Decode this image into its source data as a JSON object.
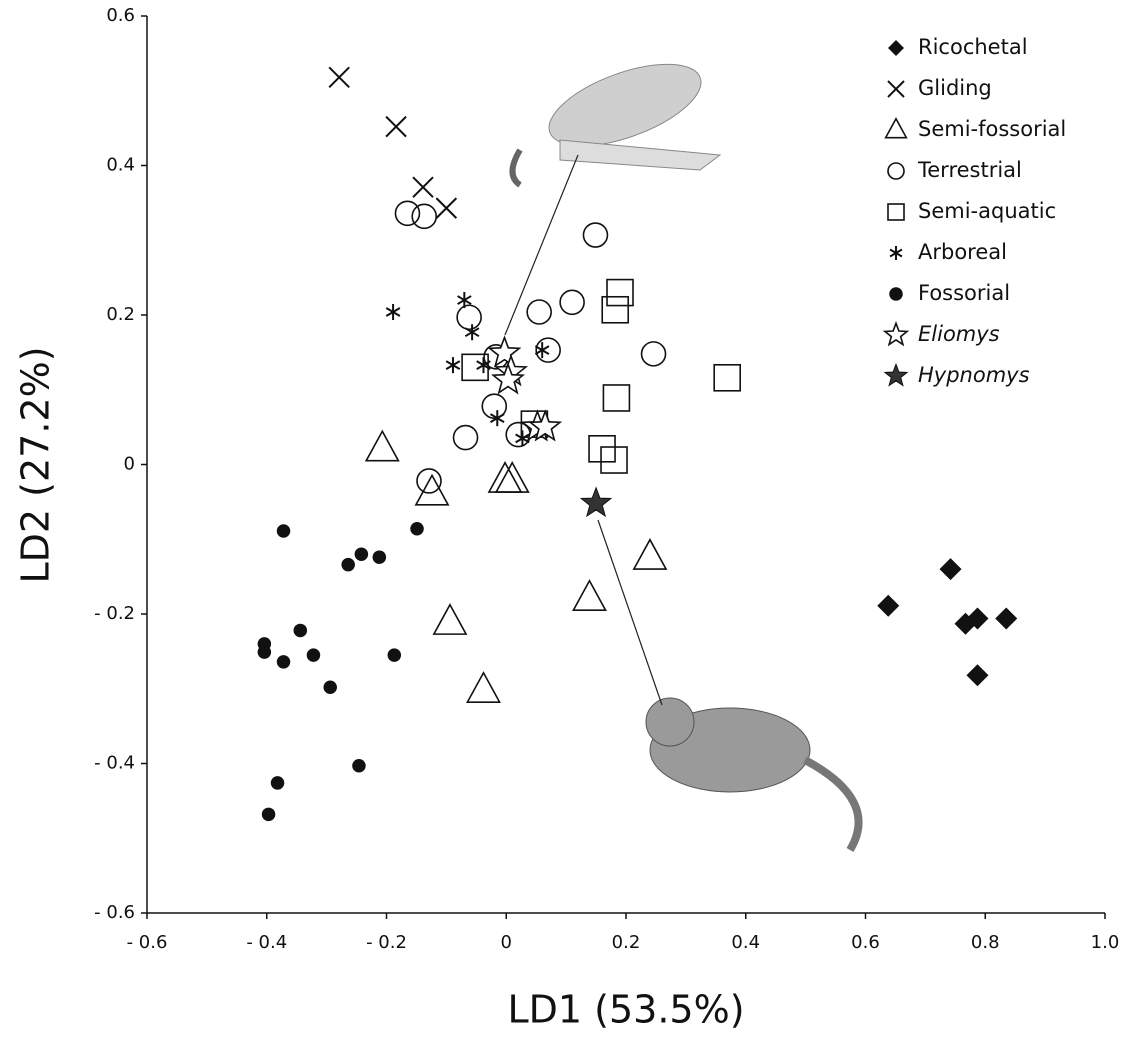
{
  "chart_data": {
    "type": "scatter",
    "xlabel": "LD1 (53.5%)",
    "ylabel": "LD2 (27.2%)",
    "xlim": [
      -0.6,
      1.0
    ],
    "ylim": [
      -0.6,
      0.6
    ],
    "xticks": [
      {
        "value": -0.6,
        "label": "- 0.6"
      },
      {
        "value": -0.4,
        "label": "- 0.4"
      },
      {
        "value": -0.2,
        "label": "- 0.2"
      },
      0,
      0.2,
      0.4,
      0.6,
      0.8,
      {
        "value": 1.0,
        "label": "1.0"
      }
    ],
    "yticks": [
      {
        "value": -0.6,
        "label": "- 0.6"
      },
      {
        "value": -0.4,
        "label": "- 0.4"
      },
      {
        "value": -0.2,
        "label": "- 0.2"
      },
      0,
      0.2,
      0.4,
      0.6
    ],
    "legend": "upper right",
    "series": [
      {
        "name": "Ricochetal",
        "marker": "diamond",
        "color": "#111111",
        "x": [
          0.638,
          0.742,
          0.767,
          0.787,
          0.835,
          0.787
        ],
        "y": [
          -0.189,
          -0.14,
          -0.213,
          -0.206,
          -0.206,
          -0.282
        ]
      },
      {
        "name": "Gliding",
        "marker": "cross",
        "color": "#111111",
        "x": [
          -0.279,
          -0.184,
          -0.139,
          -0.1
        ],
        "y": [
          0.518,
          0.452,
          0.371,
          0.343
        ]
      },
      {
        "name": "Semi-fossorial",
        "marker": "triangle",
        "color": "#111111",
        "x": [
          -0.207,
          -0.124,
          -0.002,
          0.01,
          0.24,
          0.139,
          -0.094,
          -0.038
        ],
        "y": [
          0.021,
          -0.038,
          -0.021,
          -0.021,
          -0.124,
          -0.179,
          -0.211,
          -0.302
        ]
      },
      {
        "name": "Terrestrial",
        "marker": "circle",
        "color": "#111111",
        "x": [
          -0.165,
          -0.137,
          0.149,
          0.11,
          -0.062,
          0.055,
          0.07,
          0.246,
          -0.017,
          -0.02,
          -0.068,
          0.02,
          -0.129
        ],
        "y": [
          0.336,
          0.332,
          0.307,
          0.217,
          0.197,
          0.204,
          0.153,
          0.148,
          0.144,
          0.078,
          0.036,
          0.04,
          -0.022
        ]
      },
      {
        "name": "Semi-aquatic",
        "marker": "square",
        "color": "#111111",
        "x": [
          0.19,
          0.182,
          -0.052,
          0.184,
          0.369,
          0.047,
          0.16,
          0.18
        ],
        "y": [
          0.23,
          0.207,
          0.13,
          0.089,
          0.116,
          0.054,
          0.021,
          0.006
        ]
      },
      {
        "name": "Arboreal",
        "marker": "asterisk",
        "color": "#111111",
        "x": [
          -0.189,
          -0.07,
          -0.057,
          -0.089,
          -0.038,
          0.06,
          -0.015,
          0.027
        ],
        "y": [
          0.204,
          0.22,
          0.177,
          0.133,
          0.133,
          0.153,
          0.062,
          0.035
        ]
      },
      {
        "name": "Fossorial",
        "marker": "dot",
        "color": "#111111",
        "x": [
          -0.372,
          -0.149,
          -0.242,
          -0.264,
          -0.212,
          -0.344,
          -0.372,
          -0.322,
          -0.294,
          -0.404,
          -0.404,
          -0.187,
          -0.246,
          -0.382,
          -0.397
        ],
        "y": [
          -0.089,
          -0.086,
          -0.12,
          -0.134,
          -0.124,
          -0.222,
          -0.264,
          -0.255,
          -0.298,
          -0.24,
          -0.251,
          -0.255,
          -0.403,
          -0.426,
          -0.468
        ]
      },
      {
        "name": "Eliomys",
        "marker": "star",
        "color": "#111111",
        "x": [
          -0.003,
          0.008,
          0.003,
          0.052,
          0.065
        ],
        "y": [
          0.149,
          0.124,
          0.113,
          0.05,
          0.05
        ]
      },
      {
        "name": "Hypnomys",
        "marker": "filled-star",
        "color": "#333333",
        "x": [
          0.15
        ],
        "y": [
          -0.052
        ]
      }
    ]
  }
}
